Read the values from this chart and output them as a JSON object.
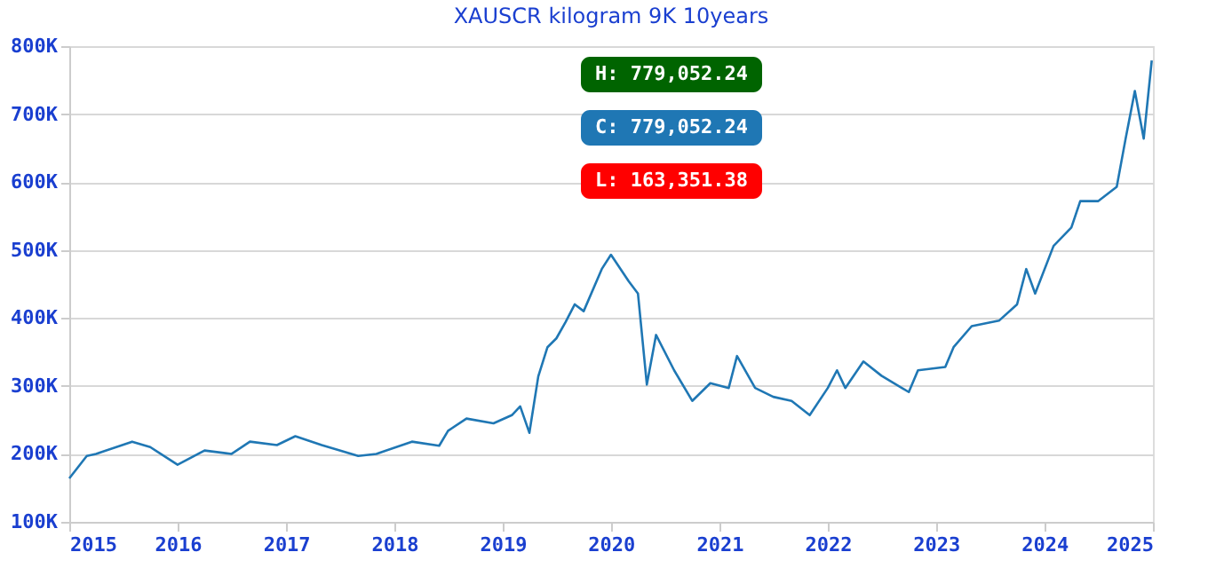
{
  "chart_data": {
    "type": "line",
    "title": "XAUSCR kilogram 9K 10years",
    "x": [
      "2015-01",
      "2015-03",
      "2015-04",
      "2015-08",
      "2015-10",
      "2016-01",
      "2016-04",
      "2016-07",
      "2016-09",
      "2016-12",
      "2017-02",
      "2017-05",
      "2017-09",
      "2017-11",
      "2018-03",
      "2018-06",
      "2018-07",
      "2018-09",
      "2018-12",
      "2019-02",
      "2019-03",
      "2019-04",
      "2019-05",
      "2019-06",
      "2019-07",
      "2019-08",
      "2019-09",
      "2019-10",
      "2019-12",
      "2020-01",
      "2020-03",
      "2020-04",
      "2020-05",
      "2020-06",
      "2020-08",
      "2020-10",
      "2020-12",
      "2021-02",
      "2021-03",
      "2021-05",
      "2021-07",
      "2021-09",
      "2021-11",
      "2022-01",
      "2022-02",
      "2022-03",
      "2022-05",
      "2022-07",
      "2022-10",
      "2022-11",
      "2023-02",
      "2023-03",
      "2023-05",
      "2023-08",
      "2023-10",
      "2023-11",
      "2023-12",
      "2024-02",
      "2024-04",
      "2024-05",
      "2024-07",
      "2024-09",
      "2024-10",
      "2024-11",
      "2024-12",
      "2024-12-28"
    ],
    "series": [
      {
        "color": "#1f77b4",
        "values": [
          164000,
          197000,
          200000,
          218000,
          210000,
          184000,
          205000,
          200000,
          218000,
          213000,
          226000,
          213000,
          197000,
          200000,
          218000,
          212000,
          234000,
          252000,
          245000,
          257000,
          270000,
          231000,
          314000,
          357000,
          370000,
          394000,
          420000,
          410000,
          472000,
          493000,
          454000,
          436000,
          302000,
          375000,
          323000,
          278000,
          304000,
          297000,
          344000,
          297000,
          284000,
          278000,
          257000,
          297000,
          323000,
          297000,
          336000,
          315000,
          291000,
          323000,
          328000,
          357000,
          388000,
          396000,
          420000,
          472000,
          436000,
          506000,
          533000,
          572000,
          572000,
          593000,
          664000,
          734000,
          664000,
          779000
        ]
      }
    ],
    "xlim": [
      "2015-01-01",
      "2025-01-01"
    ],
    "xticks": [
      "2015",
      "2016",
      "2017",
      "2018",
      "2019",
      "2020",
      "2021",
      "2022",
      "2023",
      "2024",
      "2025"
    ],
    "ylim": [
      100000,
      800000
    ],
    "yticks": [
      {
        "value": 100000,
        "label": "100K"
      },
      {
        "value": 200000,
        "label": "200K"
      },
      {
        "value": 300000,
        "label": "300K"
      },
      {
        "value": 400000,
        "label": "400K"
      },
      {
        "value": 500000,
        "label": "500K"
      },
      {
        "value": 600000,
        "label": "600K"
      },
      {
        "value": 700000,
        "label": "700K"
      },
      {
        "value": 800000,
        "label": "800K"
      }
    ],
    "grid": "y",
    "annotations": [
      "H: 779,052.24",
      "C: 779,052.24",
      "L: 163,351.38"
    ]
  }
}
